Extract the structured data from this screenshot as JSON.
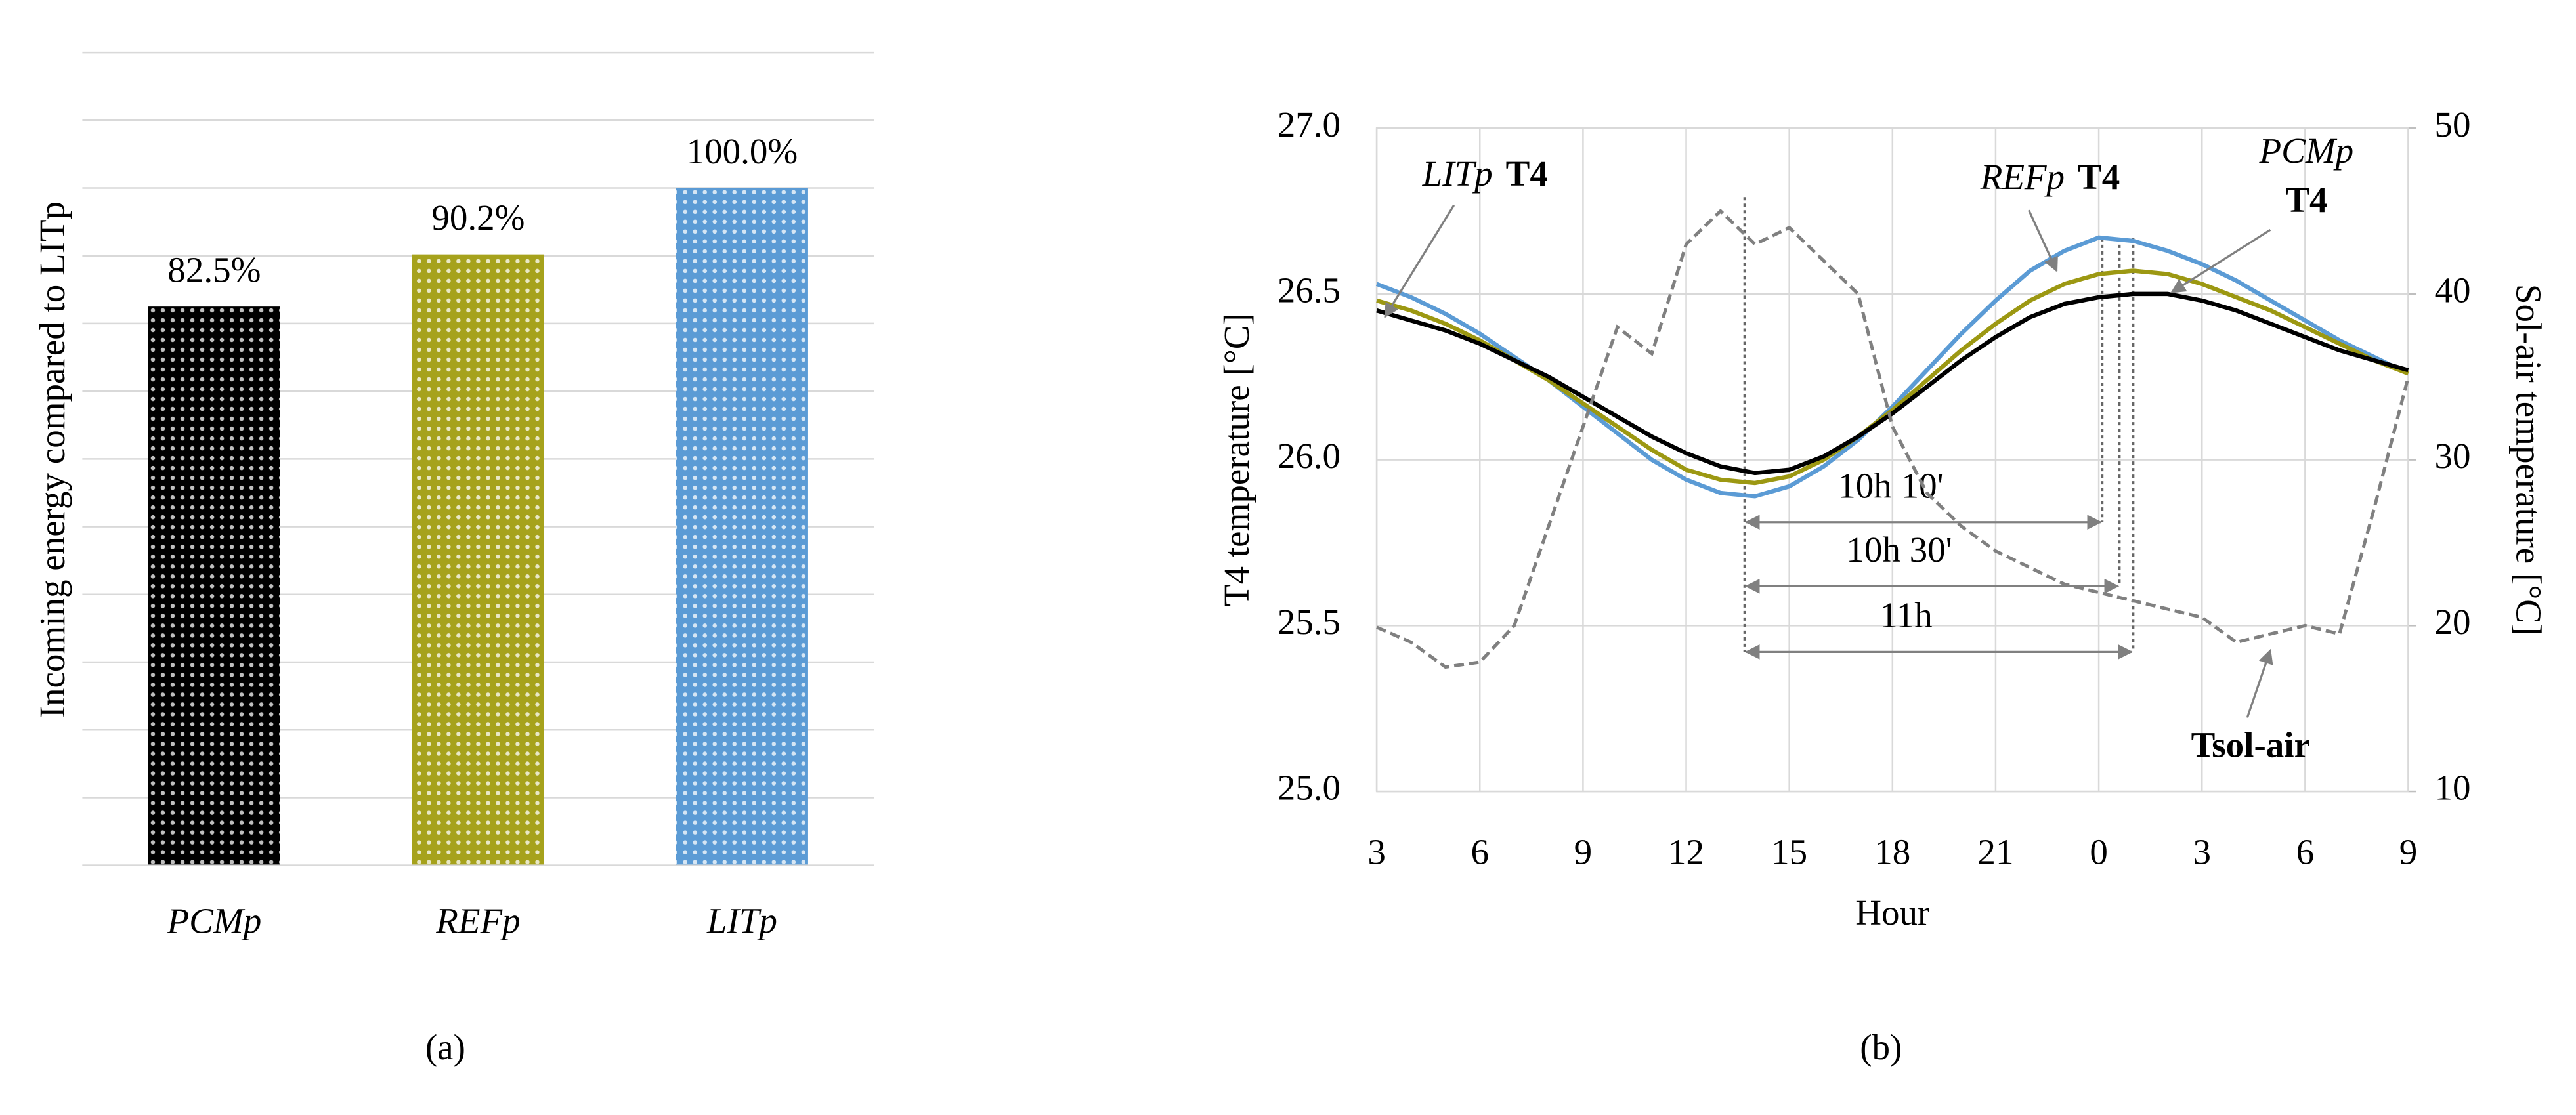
{
  "chart_data": [
    {
      "type": "bar",
      "ylabel": "Incoming energy compared to LITp",
      "categories": [
        "PCMp",
        "REFp",
        "LITp"
      ],
      "values": [
        82.5,
        90.2,
        100.0
      ],
      "value_labels": [
        "82.5%",
        "90.2%",
        "100.0%"
      ],
      "colors": [
        "#000000",
        "#a6a21c",
        "#5b9bd5"
      ],
      "ylim": [
        0,
        120
      ],
      "ygrid": [
        0,
        10,
        20,
        30,
        40,
        50,
        60,
        70,
        80,
        90,
        100,
        110,
        120
      ],
      "caption": "(a)"
    },
    {
      "type": "line",
      "xlabel": "Hour",
      "ylabel": "T4 temperature [°C]",
      "y2label": "Sol-air temperature [°C]",
      "x": [
        3,
        4,
        5,
        6,
        7,
        8,
        9,
        10,
        11,
        12,
        13,
        14,
        15,
        16,
        17,
        18,
        19,
        20,
        21,
        22,
        23,
        24,
        25,
        26,
        27,
        28,
        29,
        30,
        31,
        32,
        33
      ],
      "xlim": [
        3,
        33
      ],
      "xticks": [
        3,
        6,
        9,
        12,
        15,
        18,
        21,
        {
          "value": 24,
          "label": "0"
        },
        {
          "value": 27,
          "label": "3"
        },
        {
          "value": 30,
          "label": "6"
        },
        {
          "value": 33,
          "label": "9"
        }
      ],
      "ylim": [
        25,
        27
      ],
      "yticks": [
        {
          "value": 25,
          "label": "25.0"
        },
        25.5,
        {
          "value": 26,
          "label": "26.0"
        },
        26.5,
        {
          "value": 27,
          "label": "27.0"
        }
      ],
      "y2lim": [
        10,
        50
      ],
      "y2ticks": [
        10,
        20,
        30,
        40,
        50
      ],
      "grid": true,
      "series": [
        {
          "name": "LITp",
          "color": "#5b9bd5",
          "style": "solid",
          "values": [
            26.53,
            26.49,
            26.44,
            26.38,
            26.31,
            26.24,
            26.16,
            26.08,
            26.0,
            25.94,
            25.9,
            25.89,
            25.92,
            25.98,
            26.06,
            26.16,
            26.27,
            26.38,
            26.48,
            26.57,
            26.63,
            26.67,
            26.66,
            26.63,
            26.59,
            26.54,
            26.48,
            26.42,
            26.36,
            26.31,
            26.26
          ]
        },
        {
          "name": "REFp",
          "color": "#9c9812",
          "style": "solid",
          "values": [
            26.48,
            26.45,
            26.41,
            26.36,
            26.3,
            26.24,
            26.17,
            26.1,
            26.03,
            25.97,
            25.94,
            25.93,
            25.95,
            26.0,
            26.07,
            26.15,
            26.24,
            26.33,
            26.41,
            26.48,
            26.53,
            26.56,
            26.57,
            26.56,
            26.53,
            26.49,
            26.45,
            26.4,
            26.35,
            26.3,
            26.26
          ]
        },
        {
          "name": "PCMp",
          "color": "#000000",
          "style": "solid",
          "values": [
            26.45,
            26.42,
            26.39,
            26.35,
            26.3,
            26.25,
            26.19,
            26.13,
            26.07,
            26.02,
            25.98,
            25.96,
            25.97,
            26.01,
            26.07,
            26.14,
            26.22,
            26.3,
            26.37,
            26.43,
            26.47,
            26.49,
            26.5,
            26.5,
            26.48,
            26.45,
            26.41,
            26.37,
            26.33,
            26.3,
            26.27
          ]
        },
        {
          "name": "Tsol-air",
          "color": "#808080",
          "style": "dashed",
          "axis": "y2",
          "values": [
            19.9,
            19.0,
            17.5,
            17.8,
            20.0,
            26.0,
            32.0,
            38.0,
            36.4,
            43.0,
            45.0,
            43.0,
            44.0,
            42.0,
            40.0,
            32.0,
            28.0,
            26.0,
            24.5,
            23.5,
            22.5,
            22.0,
            21.5,
            21.0,
            20.5,
            19.0,
            19.5,
            20.0,
            19.5,
            27.0,
            35.0
          ]
        }
      ],
      "symbol": "T4",
      "intervals": [
        {
          "label": "10h 10'",
          "start": 13.7,
          "end": 24.1
        },
        {
          "label": "10h 30'",
          "start": 13.7,
          "end": 24.6
        },
        {
          "label": "11h",
          "start": 13.7,
          "end": 25.0
        }
      ],
      "caption": "(b)"
    }
  ]
}
